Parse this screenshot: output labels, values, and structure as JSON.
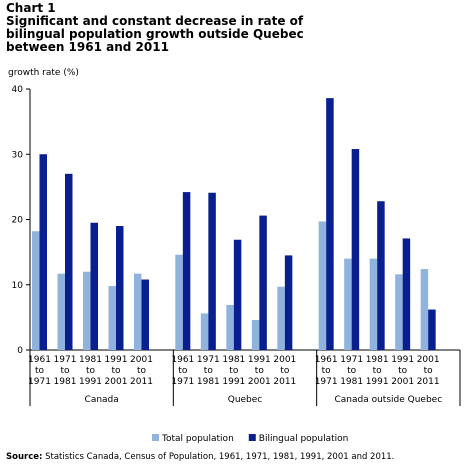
{
  "chart_data": {
    "type": "bar",
    "chart_number": "Chart 1",
    "title": "Significant and constant decrease in rate of bilingual population growth outside Quebec between 1961 and 2011",
    "y_label": "growth rate (%)",
    "groups": [
      "Canada",
      "Quebec",
      "Canada outside Quebec"
    ],
    "categories": [
      "1961 to 1971",
      "1971 to 1981",
      "1981 to 1991",
      "1991 to 2001",
      "2001 to 2011",
      "1961 to 1971",
      "1971 to 1981",
      "1981 to 1991",
      "1991 to 2001",
      "2001 to 2011",
      "1961 to 1971",
      "1971 to 1981",
      "1981 to 1991",
      "1991 to 2001",
      "2001 to 2011"
    ],
    "series": [
      {
        "name": "Total population",
        "color": "#8fb3dc",
        "values": [
          18.2,
          11.7,
          12.0,
          9.8,
          11.7,
          14.6,
          5.6,
          6.9,
          4.6,
          9.7,
          19.7,
          14.0,
          14.0,
          11.6,
          12.4
        ]
      },
      {
        "name": "Bilingual population",
        "color": "#0a1f8f",
        "values": [
          30.0,
          27.0,
          19.5,
          19.0,
          10.8,
          24.2,
          24.1,
          16.9,
          20.6,
          14.5,
          38.6,
          30.8,
          22.8,
          17.1,
          6.2
        ]
      }
    ],
    "ylim": [
      0,
      40
    ],
    "yticks": [
      0,
      10,
      20,
      30,
      40
    ],
    "source_label": "Source:",
    "source": "Statistics Canada, Census of Population, 1961, 1971, 1981, 1991, 2001 and 2011."
  }
}
